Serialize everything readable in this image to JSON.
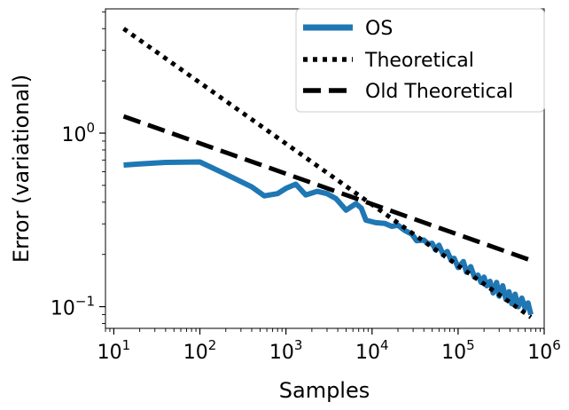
{
  "chart_data": {
    "type": "line",
    "title": "",
    "xlabel": "Samples",
    "ylabel": "Error (variational)",
    "xscale": "log",
    "yscale": "log",
    "xlim": [
      8,
      1000000
    ],
    "ylim": [
      0.075,
      5.2
    ],
    "grid": false,
    "legend_position": "top-right",
    "x_ticks": [
      {
        "value": 10,
        "base": "10",
        "exp": "1"
      },
      {
        "value": 100,
        "base": "10",
        "exp": "2"
      },
      {
        "value": 1000,
        "base": "10",
        "exp": "3"
      },
      {
        "value": 10000,
        "base": "10",
        "exp": "4"
      },
      {
        "value": 100000,
        "base": "10",
        "exp": "5"
      },
      {
        "value": 1000000,
        "base": "10",
        "exp": "6"
      }
    ],
    "y_ticks": [
      {
        "value": 0.1,
        "base": "10",
        "exp": "−1"
      },
      {
        "value": 1,
        "base": "10",
        "exp": "0"
      }
    ],
    "series": [
      {
        "name": "OS",
        "color": "#1f77b4",
        "style": "solid",
        "points": [
          [
            13,
            0.655
          ],
          [
            20,
            0.665
          ],
          [
            40,
            0.678
          ],
          [
            100,
            0.682
          ],
          [
            200,
            0.58
          ],
          [
            400,
            0.49
          ],
          [
            560,
            0.435
          ],
          [
            800,
            0.448
          ],
          [
            1000,
            0.48
          ],
          [
            1300,
            0.508
          ],
          [
            1700,
            0.44
          ],
          [
            2300,
            0.462
          ],
          [
            3000,
            0.448
          ],
          [
            3800,
            0.42
          ],
          [
            5000,
            0.36
          ],
          [
            6500,
            0.392
          ],
          [
            7500,
            0.37
          ],
          [
            8500,
            0.315
          ],
          [
            11000,
            0.305
          ],
          [
            14000,
            0.302
          ],
          [
            17000,
            0.29
          ],
          [
            20000,
            0.295
          ],
          [
            24000,
            0.275
          ],
          [
            29000,
            0.262
          ],
          [
            33000,
            0.24
          ],
          [
            40000,
            0.242
          ],
          [
            45000,
            0.23
          ],
          [
            50000,
            0.232
          ],
          [
            55000,
            0.212
          ],
          [
            60000,
            0.226
          ],
          [
            67000,
            0.2
          ],
          [
            75000,
            0.208
          ],
          [
            82000,
            0.188
          ],
          [
            90000,
            0.19
          ],
          [
            100000,
            0.168
          ],
          [
            115000,
            0.182
          ],
          [
            125000,
            0.158
          ],
          [
            140000,
            0.17
          ],
          [
            155000,
            0.148
          ],
          [
            170000,
            0.152
          ],
          [
            185000,
            0.138
          ],
          [
            200000,
            0.148
          ],
          [
            215000,
            0.132
          ],
          [
            235000,
            0.14
          ],
          [
            255000,
            0.12
          ],
          [
            280000,
            0.138
          ],
          [
            300000,
            0.115
          ],
          [
            330000,
            0.132
          ],
          [
            360000,
            0.11
          ],
          [
            390000,
            0.122
          ],
          [
            420000,
            0.104
          ],
          [
            460000,
            0.118
          ],
          [
            500000,
            0.1
          ],
          [
            550000,
            0.112
          ],
          [
            600000,
            0.098
          ],
          [
            650000,
            0.105
          ],
          [
            700000,
            0.09
          ]
        ]
      },
      {
        "name": "Theoretical",
        "color": "#000000",
        "style": "dotted",
        "points": [
          [
            13,
            4.0
          ],
          [
            700000,
            0.087
          ]
        ]
      },
      {
        "name": "Old Theoretical",
        "color": "#000000",
        "style": "dashed",
        "points": [
          [
            13,
            1.25
          ],
          [
            700000,
            0.185
          ]
        ]
      }
    ]
  }
}
